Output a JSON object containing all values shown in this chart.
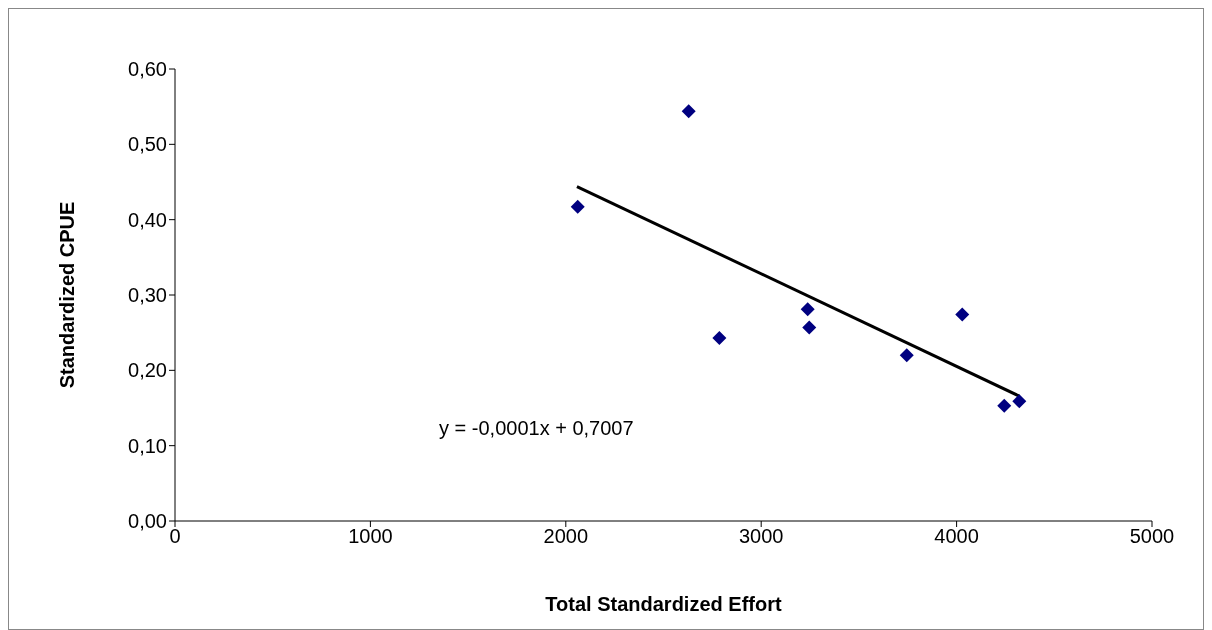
{
  "chart_data": {
    "type": "scatter",
    "xlabel": "Total Standardized Effort",
    "ylabel": "Standardized CPUE",
    "annotations": [
      "y = -0,0001x + 0,7007"
    ],
    "xlim": [
      0,
      5000
    ],
    "xticks": [
      0,
      1000,
      2000,
      3000,
      4000,
      5000
    ],
    "ylim": [
      0,
      0.6
    ],
    "yticks": [
      {
        "value": 0,
        "label": "0,00"
      },
      {
        "value": 0.1,
        "label": "0,10"
      },
      {
        "value": 0.2,
        "label": "0,20"
      },
      {
        "value": 0.3,
        "label": "0,30"
      },
      {
        "value": 0.4,
        "label": "0,40"
      },
      {
        "value": 0.5,
        "label": "0,50"
      },
      {
        "value": 0.6,
        "label": "0,60"
      }
    ],
    "grid": false,
    "series": [
      {
        "color": "#000080",
        "marker": "diamond",
        "x": [
          2061,
          2629,
          2786,
          3238,
          3246,
          3745,
          4029,
          4244,
          4321
        ],
        "values": [
          0.417,
          0.544,
          0.243,
          0.281,
          0.257,
          0.22,
          0.274,
          0.153,
          0.159
        ]
      },
      {
        "type": "line",
        "color": "#000000",
        "marker": "none",
        "line_style": "solid",
        "x": [
          2057,
          4319
        ],
        "values": [
          0.444,
          0.166
        ]
      }
    ]
  }
}
